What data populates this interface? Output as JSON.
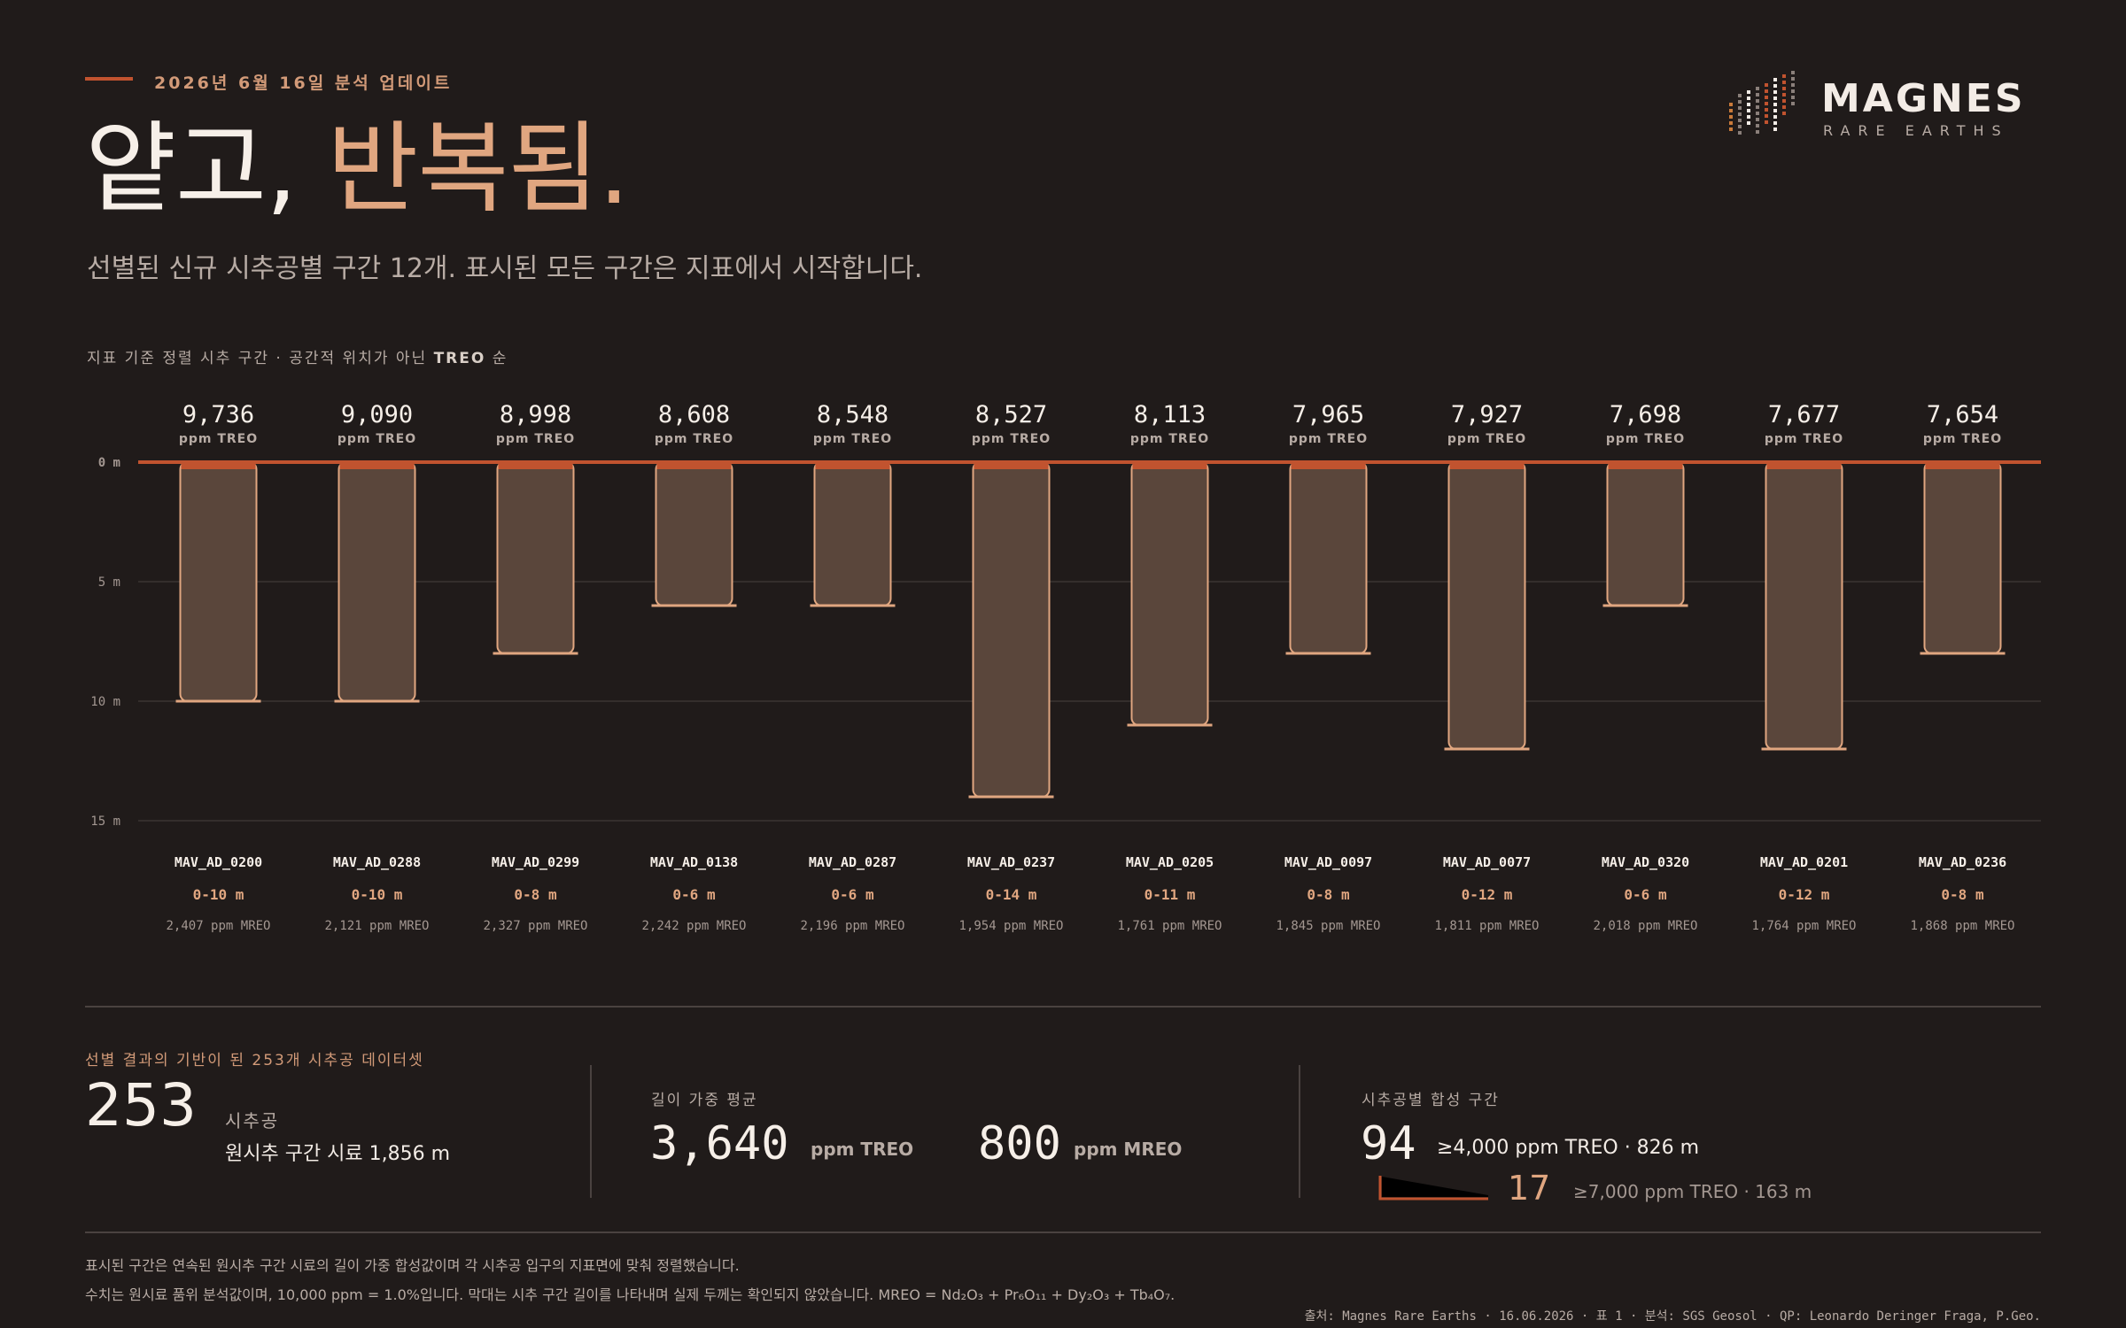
{
  "header": {
    "date": "2026년 6월 16일 분석 업데이트",
    "title_main": "얕고, ",
    "title_accent": "반복됨.",
    "subtitle": "선별된 신규 시추공별 구간 12개. 표시된 모든 구간은 지표에서 시작합니다."
  },
  "logo": {
    "name": "MAGNES",
    "tagline": "RARE EARTHS",
    "mark_icon": "dot-matrix-logo-mark"
  },
  "chart_caption": {
    "prefix": "지표 기준 정렬 시추 구간 · 공간적 위치가 아닌 ",
    "bold": "TREO",
    "suffix": " 순"
  },
  "chart_data": {
    "type": "bar",
    "ylim": [
      0,
      15
    ],
    "y_ticks": [
      0,
      5,
      10,
      15
    ],
    "y_tick_labels": [
      "0 m",
      "5 m",
      "10 m",
      "15 m"
    ],
    "value_unit_label": "ppm TREO",
    "grid": true,
    "colors": {
      "bar_fill": "#5a463b",
      "bar_stroke": "#e0a680",
      "surface_line": "#c1532f",
      "grid": "#3b3432"
    },
    "bars": [
      {
        "hole": "MAV_AD_0200",
        "treo": "9,736",
        "interval": "0-10 m",
        "depth": 10,
        "mreo": "2,407 ppm MREO"
      },
      {
        "hole": "MAV_AD_0288",
        "treo": "9,090",
        "interval": "0-10 m",
        "depth": 10,
        "mreo": "2,121 ppm MREO"
      },
      {
        "hole": "MAV_AD_0299",
        "treo": "8,998",
        "interval": "0-8 m",
        "depth": 8,
        "mreo": "2,327 ppm MREO"
      },
      {
        "hole": "MAV_AD_0138",
        "treo": "8,608",
        "interval": "0-6 m",
        "depth": 6,
        "mreo": "2,242 ppm MREO"
      },
      {
        "hole": "MAV_AD_0287",
        "treo": "8,548",
        "interval": "0-6 m",
        "depth": 6,
        "mreo": "2,196 ppm MREO"
      },
      {
        "hole": "MAV_AD_0237",
        "treo": "8,527",
        "interval": "0-14 m",
        "depth": 14,
        "mreo": "1,954 ppm MREO"
      },
      {
        "hole": "MAV_AD_0205",
        "treo": "8,113",
        "interval": "0-11 m",
        "depth": 11,
        "mreo": "1,761 ppm MREO"
      },
      {
        "hole": "MAV_AD_0097",
        "treo": "7,965",
        "interval": "0-8 m",
        "depth": 8,
        "mreo": "1,845 ppm MREO"
      },
      {
        "hole": "MAV_AD_0077",
        "treo": "7,927",
        "interval": "0-12 m",
        "depth": 12,
        "mreo": "1,811 ppm MREO"
      },
      {
        "hole": "MAV_AD_0320",
        "treo": "7,698",
        "interval": "0-6 m",
        "depth": 6,
        "mreo": "2,018 ppm MREO"
      },
      {
        "hole": "MAV_AD_0201",
        "treo": "7,677",
        "interval": "0-12 m",
        "depth": 12,
        "mreo": "1,764 ppm MREO"
      },
      {
        "hole": "MAV_AD_0236",
        "treo": "7,654",
        "interval": "0-8 m",
        "depth": 8,
        "mreo": "1,868 ppm MREO"
      }
    ]
  },
  "stats": {
    "caption": "선별 결과의 기반이 된 253개 시추공 데이터셋",
    "holes": {
      "value": "253",
      "label": "시추공",
      "detail": "원시추 구간 시료 1,856 m"
    },
    "weighted": {
      "label": "길이 가중 평균",
      "treo_value": "3,640",
      "treo_unit": "ppm TREO",
      "mreo_value": "800",
      "mreo_unit": "ppm MREO"
    },
    "composites": {
      "label": "시추공별 합성 구간",
      "primary_value": "94",
      "primary_text": "≥4,000 ppm TREO · 826 m",
      "secondary_value": "17",
      "secondary_text": "≥7,000 ppm TREO · 163 m"
    }
  },
  "footnotes": {
    "line1": "표시된 구간은 연속된 원시추 구간 시료의 길이 가중 합성값이며 각 시추공 입구의 지표면에 맞춰 정렬했습니다.",
    "line2": "수치는 원시료 품위 분석값이며, 10,000 ppm = 1.0%입니다. 막대는 시추 구간 길이를 나타내며 실제 두께는 확인되지 않았습니다. MREO = Nd₂O₃ + Pr₆O₁₁ + Dy₂O₃ + Tb₄O₇.",
    "source": "출처: Magnes Rare Earths · 16.06.2026 · 표 1 · 분석: SGS Geosol · QP: Leonardo Deringer Fraga, P.Geo."
  }
}
